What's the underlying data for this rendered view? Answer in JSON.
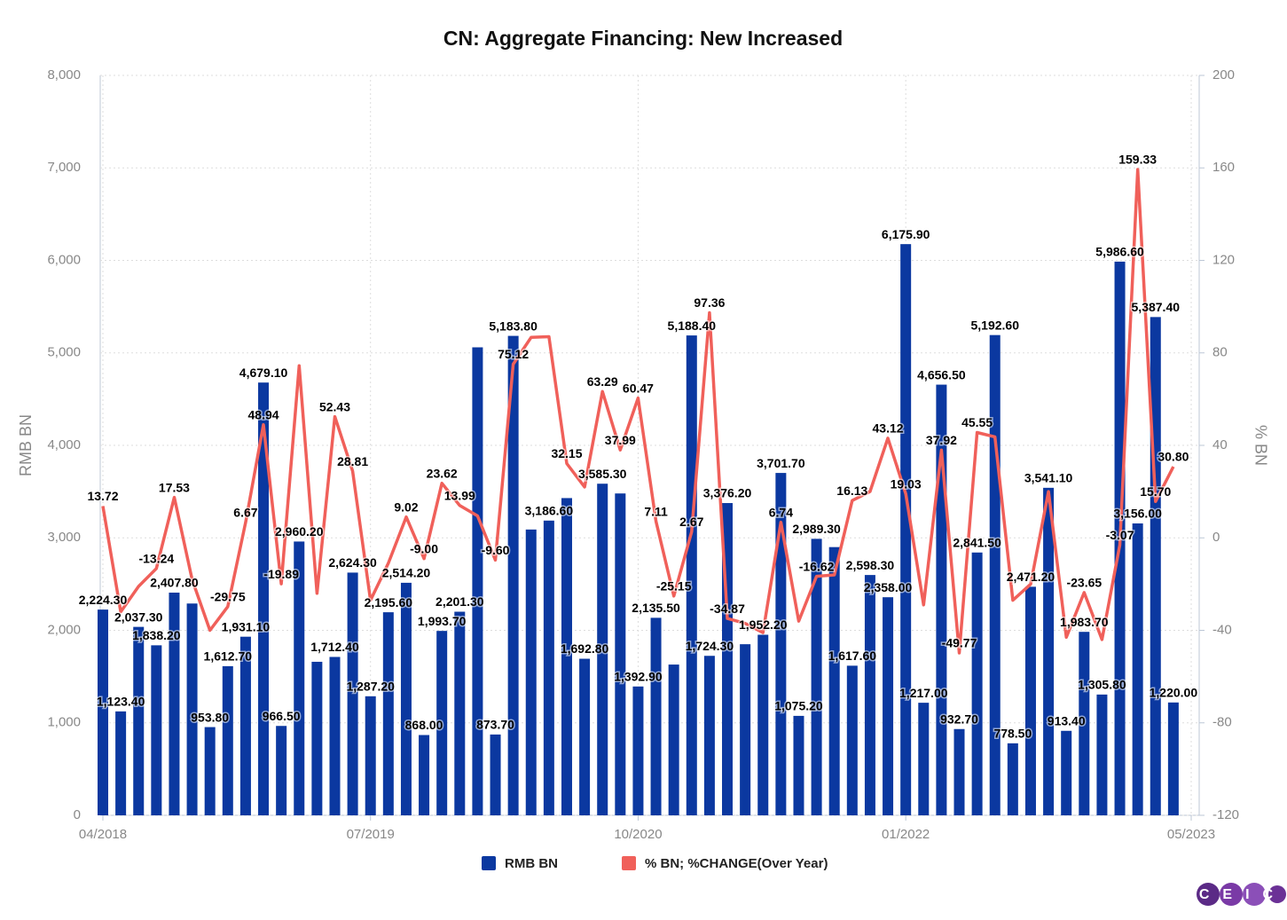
{
  "chart_data": {
    "type": "combo",
    "title": "CN: Aggregate Financing: New Increased",
    "y_label": "RMB BN",
    "y2_label": "% BN",
    "categories": [
      "04/2018",
      "05/2018",
      "06/2018",
      "07/2018",
      "08/2018",
      "09/2018",
      "10/2018",
      "11/2018",
      "12/2018",
      "01/2019",
      "02/2019",
      "03/2019",
      "04/2019",
      "05/2019",
      "06/2019",
      "07/2019",
      "08/2019",
      "09/2019",
      "10/2019",
      "11/2019",
      "12/2019",
      "01/2020",
      "02/2020",
      "03/2020",
      "04/2020",
      "05/2020",
      "06/2020",
      "07/2020",
      "08/2020",
      "09/2020",
      "10/2020",
      "11/2020",
      "12/2020",
      "01/2021",
      "02/2021",
      "03/2021",
      "04/2021",
      "05/2021",
      "06/2021",
      "07/2021",
      "08/2021",
      "09/2021",
      "10/2021",
      "11/2021",
      "12/2021",
      "01/2022",
      "02/2022",
      "03/2022",
      "04/2022",
      "05/2022",
      "06/2022",
      "07/2022",
      "08/2022",
      "09/2022",
      "10/2022",
      "11/2022",
      "12/2022",
      "01/2023",
      "02/2023",
      "03/2023",
      "04/2023"
    ],
    "xlim": [
      "04/2018",
      "05/2023"
    ],
    "xticks": [
      "04/2018",
      "07/2019",
      "10/2020",
      "01/2022",
      "05/2023"
    ],
    "ylim": [
      0,
      8000
    ],
    "yticks": [
      0,
      {
        "value": 1000,
        "label": "1,000"
      },
      {
        "value": 2000,
        "label": "2,000"
      },
      {
        "value": 3000,
        "label": "3,000"
      },
      {
        "value": 4000,
        "label": "4,000"
      },
      {
        "value": 5000,
        "label": "5,000"
      },
      {
        "value": 6000,
        "label": "6,000"
      },
      {
        "value": 7000,
        "label": "7,000"
      },
      {
        "value": 8000,
        "label": "8,000"
      }
    ],
    "y2lim": [
      -120,
      200
    ],
    "y2ticks": [
      -120,
      -80,
      -40,
      0,
      40,
      80,
      120,
      160,
      200
    ],
    "grid": true,
    "series": [
      {
        "name": "RMB BN",
        "type": "bar",
        "color": "#0b38a0",
        "values": [
          2224.3,
          1123.4,
          2037.3,
          1838.2,
          2407.8,
          2290,
          953.8,
          1612.7,
          1931.1,
          4679.1,
          966.5,
          2960.2,
          1660,
          1712.4,
          2624.3,
          1287.2,
          2195.6,
          2514.2,
          868,
          1993.7,
          2201.3,
          5060,
          873.7,
          5183.8,
          3090,
          3186.6,
          3430,
          1692.8,
          3585.3,
          3480,
          1392.9,
          2135.5,
          1630,
          5188.4,
          1724.3,
          3376.2,
          1850,
          1952.2,
          3701.7,
          1075.2,
          2989.3,
          2900,
          1617.6,
          2598.3,
          2358,
          6175.9,
          1217,
          4656.5,
          932.7,
          2841.5,
          5192.6,
          778.5,
          2471.2,
          3541.1,
          913.4,
          1983.7,
          1305.8,
          5986.6,
          3156,
          5387.4,
          1220
        ],
        "value_labels": [
          "2,224.30",
          "1,123.40",
          "2,037.30",
          "1,838.20",
          "2,407.80",
          null,
          "953.80",
          "1,612.70",
          "1,931.10",
          "4,679.10",
          "966.50",
          "2,960.20",
          null,
          "1,712.40",
          "2,624.30",
          "1,287.20",
          "2,195.60",
          "2,514.20",
          "868.00",
          "1,993.70",
          "2,201.30",
          null,
          "873.70",
          "5,183.80",
          null,
          "3,186.60",
          null,
          "1,692.80",
          "3,585.30",
          null,
          "1,392.90",
          "2,135.50",
          null,
          "5,188.40",
          "1,724.30",
          "3,376.20",
          null,
          "1,952.20",
          "3,701.70",
          "1,075.20",
          "2,989.30",
          null,
          "1,617.60",
          "2,598.30",
          "2,358.00",
          "6,175.90",
          "1,217.00",
          "4,656.50",
          "932.70",
          "2,841.50",
          "5,192.60",
          "778.50",
          "2,471.20",
          "3,541.10",
          "913.40",
          "1,983.70",
          "1,305.80",
          "5,986.60",
          "3,156.00",
          "5,387.40",
          "1,220.00"
        ]
      },
      {
        "name": "% BN; %CHANGE(Over Year)",
        "type": "line",
        "axis": "y2",
        "color": "#f0605a",
        "values": [
          13.72,
          -32,
          -21,
          -13.24,
          17.53,
          -18,
          -40,
          -29.75,
          6.67,
          48.94,
          -19.89,
          74.4,
          -24,
          52.43,
          28.81,
          -27,
          -11,
          9.02,
          -9,
          23.62,
          13.99,
          9.5,
          -9.6,
          75.12,
          86.7,
          87,
          32.15,
          22,
          63.29,
          37.99,
          60.47,
          7.11,
          -25.15,
          2.67,
          97.36,
          -34.87,
          -37,
          -41,
          6.74,
          -36,
          -16.62,
          -16,
          16.13,
          20,
          43.12,
          19.03,
          -29,
          37.92,
          -49.77,
          45.55,
          43.7,
          -27,
          -20,
          20,
          -43,
          -23.65,
          -44,
          -3.07,
          159.33,
          15.7,
          30.8
        ],
        "value_labels": [
          "13.72",
          null,
          null,
          "-13.24",
          "17.53",
          null,
          null,
          "-29.75",
          "6.67",
          "48.94",
          "-19.89",
          null,
          null,
          "52.43",
          "28.81",
          null,
          null,
          "9.02",
          "-9.00",
          "23.62",
          "13.99",
          null,
          "-9.60",
          "75.12",
          null,
          null,
          "32.15",
          null,
          "63.29",
          "37.99",
          "60.47",
          "7.11",
          "-25.15",
          "2.67",
          "97.36",
          "-34.87",
          null,
          null,
          "6.74",
          null,
          "-16.62",
          null,
          "16.13",
          null,
          "43.12",
          "19.03",
          null,
          "37.92",
          "-49.77",
          "45.55",
          null,
          null,
          null,
          null,
          null,
          "-23.65",
          null,
          "-3.07",
          "159.33",
          "15.70",
          "30.80"
        ]
      }
    ],
    "logo": "CEIC"
  }
}
